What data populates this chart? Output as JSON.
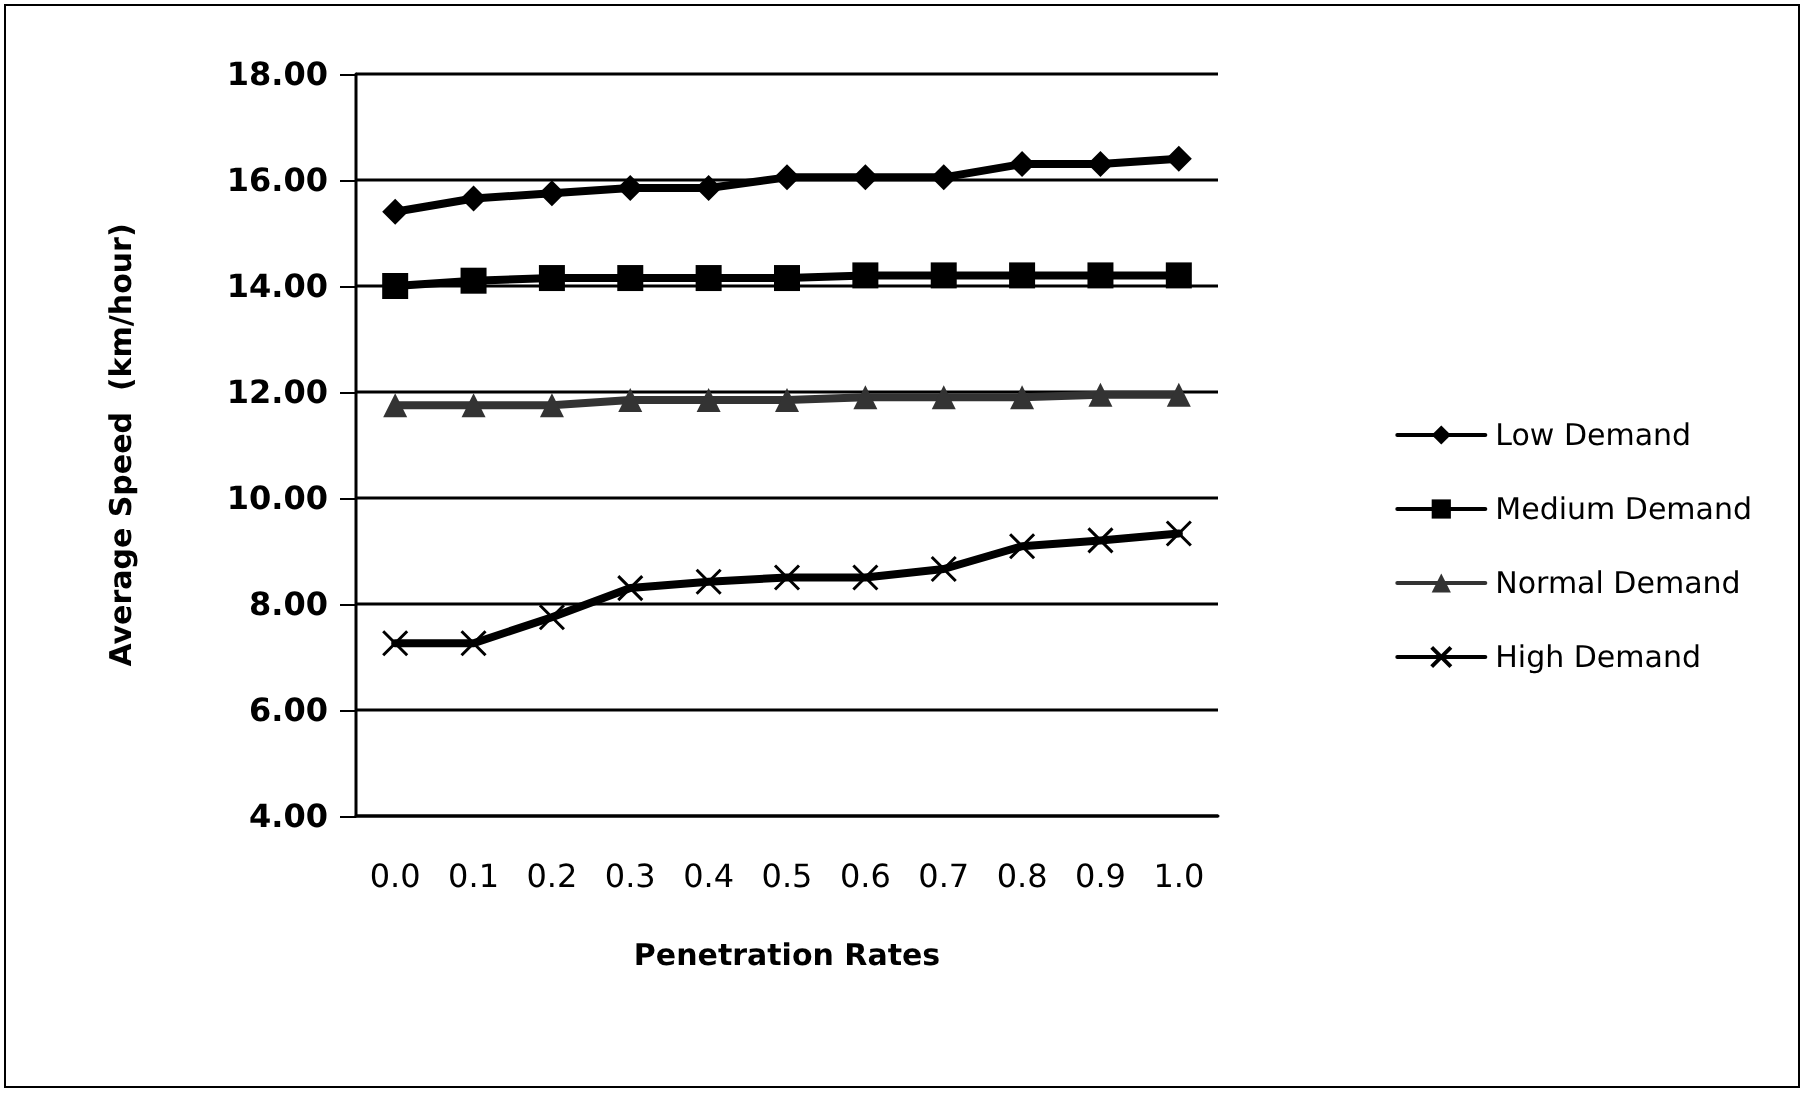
{
  "chart_data": {
    "type": "line",
    "xlabel": "Penetration Rates",
    "ylabel": "Average Speed  (km/hour)",
    "categories": [
      "0.0",
      "0.1",
      "0.2",
      "0.3",
      "0.4",
      "0.5",
      "0.6",
      "0.7",
      "0.8",
      "0.9",
      "1.0"
    ],
    "series": [
      {
        "name": "Low Demand",
        "color": "#000000",
        "marker": "diamond",
        "values": [
          15.4,
          15.65,
          15.75,
          15.85,
          15.85,
          16.05,
          16.05,
          16.05,
          16.3,
          16.3,
          16.4
        ]
      },
      {
        "name": "Medium Demand",
        "color": "#000000",
        "marker": "square",
        "values": [
          14.0,
          14.1,
          14.15,
          14.15,
          14.15,
          14.15,
          14.2,
          14.2,
          14.2,
          14.2,
          14.2
        ]
      },
      {
        "name": "Normal Demand",
        "color": "#333333",
        "marker": "triangle",
        "values": [
          11.75,
          11.75,
          11.75,
          11.85,
          11.85,
          11.85,
          11.9,
          11.9,
          11.9,
          11.95,
          11.95
        ]
      },
      {
        "name": "High Demand",
        "color": "#000000",
        "marker": "cross",
        "values": [
          7.26,
          7.26,
          7.75,
          8.3,
          8.42,
          8.5,
          8.5,
          8.66,
          9.09,
          9.2,
          9.33
        ]
      }
    ],
    "ylim": [
      4,
      18
    ],
    "yticks": [
      {
        "value": 4,
        "label": "4.00"
      },
      {
        "value": 6,
        "label": "6.00"
      },
      {
        "value": 8,
        "label": "8.00"
      },
      {
        "value": 10,
        "label": "10.00"
      },
      {
        "value": 12,
        "label": "12.00"
      },
      {
        "value": 14,
        "label": "14.00"
      },
      {
        "value": 16,
        "label": "16.00"
      },
      {
        "value": 18,
        "label": "18.00"
      }
    ],
    "grid": "y",
    "legend": "right",
    "line_style": "solid"
  }
}
